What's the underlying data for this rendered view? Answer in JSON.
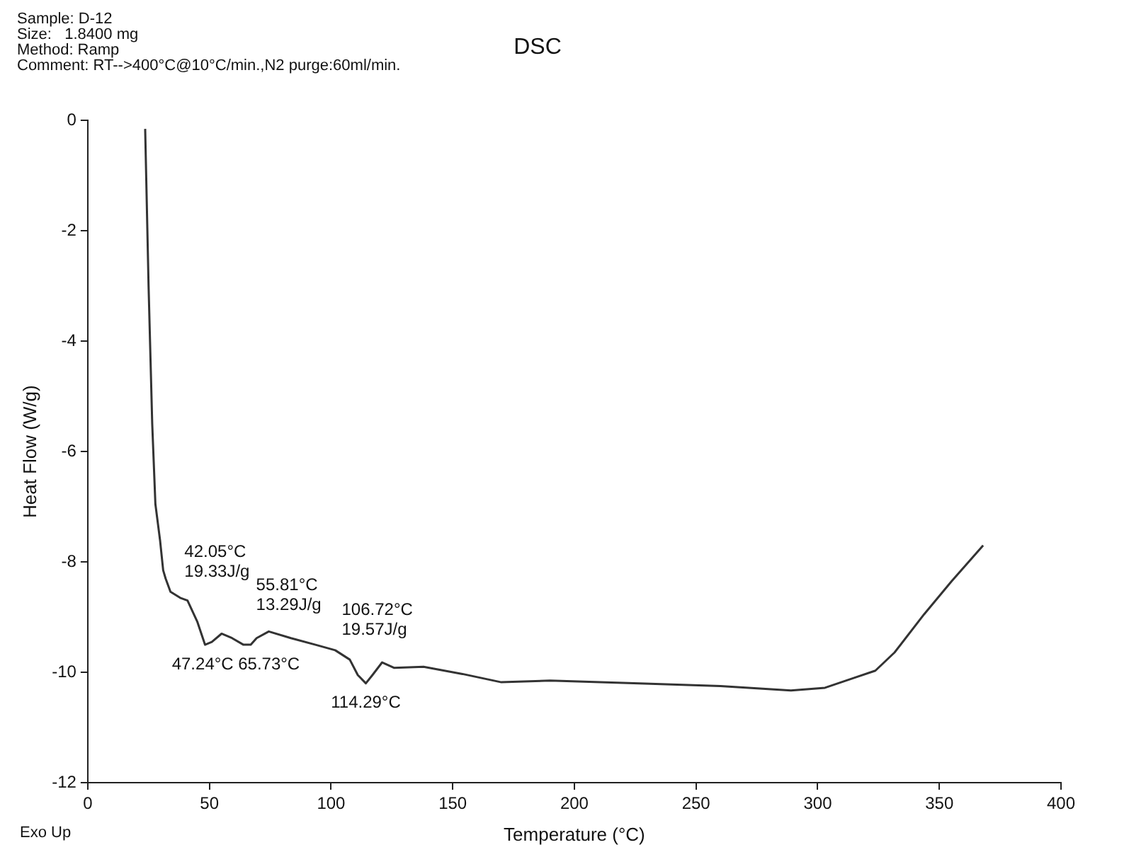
{
  "chart_data": {
    "type": "line",
    "title": "DSC",
    "xlabel": "Temperature (°C)",
    "ylabel": "Heat Flow (W/g)",
    "x": [
      23.6,
      25,
      26.5,
      27.8,
      29.7,
      31,
      32,
      34,
      38,
      41,
      45,
      48.2,
      51,
      55,
      59.3,
      64,
      67,
      69.4,
      74.4,
      83.5,
      93.6,
      101.7,
      107.7,
      111,
      114.29,
      117,
      121,
      126,
      138,
      154,
      170,
      190,
      226.7,
      260,
      289,
      303,
      315,
      323.7,
      331.6,
      343.7,
      355,
      368
    ],
    "series": [
      {
        "color": "#333333",
        "values": [
          -0.15,
          -3,
          -5.5,
          -6.95,
          -7.6,
          -8.15,
          -8.3,
          -8.54,
          -8.65,
          -8.7,
          -9.08,
          -9.5,
          -9.45,
          -9.3,
          -9.38,
          -9.5,
          -9.5,
          -9.38,
          -9.26,
          -9.38,
          -9.5,
          -9.6,
          -9.77,
          -10.05,
          -10.2,
          -10.05,
          -9.82,
          -9.92,
          -9.9,
          -10.03,
          -10.18,
          -10.15,
          -10.2,
          -10.25,
          -10.33,
          -10.28,
          -10.1,
          -9.97,
          -9.64,
          -8.95,
          -8.35,
          -7.7
        ]
      }
    ],
    "xlim": [
      0,
      400
    ],
    "xticks": [
      0,
      50,
      100,
      150,
      200,
      250,
      300,
      350,
      400
    ],
    "ylim": [
      -12,
      0
    ],
    "yticks": [
      -12,
      -10,
      -8,
      -6,
      -4,
      -2,
      0
    ],
    "grid": false,
    "legend": false,
    "marker": "none",
    "line_style": "solid",
    "annotations": [
      "Sample: D-12",
      "Size:   1.8400 mg",
      "Method: Ramp",
      "Comment: RT-->400°C@10°C/min.,N2 purge:60ml/min.",
      "Exo Up",
      {
        "text": "42.05°C\n19.33J/g",
        "x": 42.05,
        "y": -8.7
      },
      {
        "text": "55.81°C\n13.29J/g",
        "x": 55.81,
        "y": -9.3
      },
      {
        "text": "106.72°C\n19.57J/g",
        "x": 106.72,
        "y": -9.75
      },
      {
        "text": "47.24°C",
        "x": 47.24,
        "y": -9.5
      },
      {
        "text": "65.73°C",
        "x": 65.73,
        "y": -9.5
      },
      {
        "text": "114.29°C",
        "x": 114.29,
        "y": -10.2
      }
    ]
  }
}
